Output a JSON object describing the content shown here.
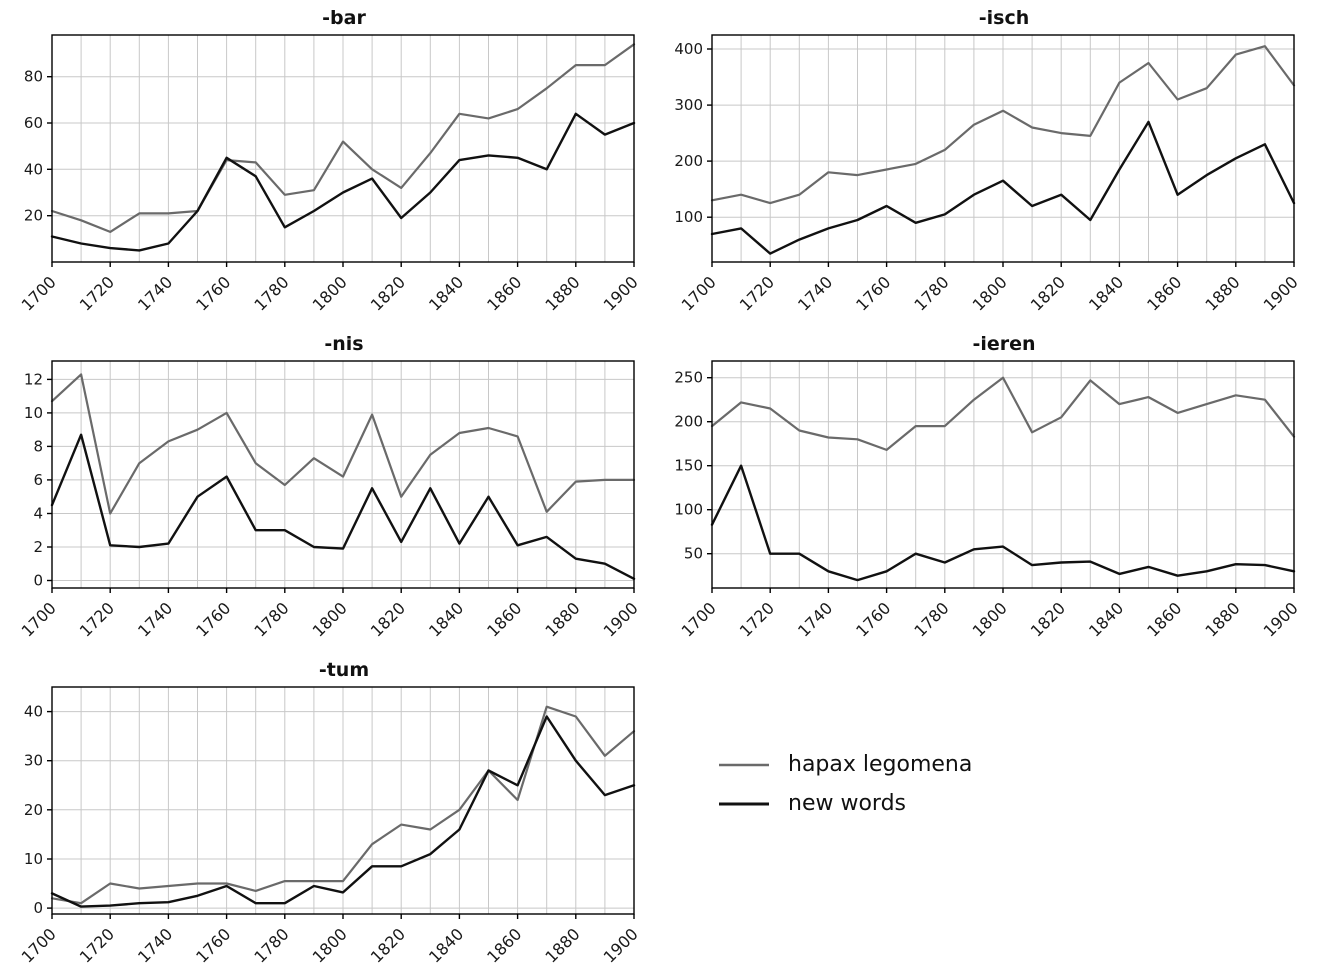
{
  "figure": {
    "background": "#ffffff",
    "grid_color": "#c8c8c8",
    "border_color": "#000000",
    "hapax_color": "#6a6a6a",
    "new_words_color": "#111111"
  },
  "legend": {
    "items": [
      {
        "label": "hapax legomena",
        "color": "#6a6a6a",
        "width": 2.5
      },
      {
        "label": "new words",
        "color": "#111111",
        "width": 3
      }
    ]
  },
  "chart_data": [
    {
      "type": "line",
      "title": "-bar",
      "xlabel": "",
      "ylabel": "",
      "x": [
        1700,
        1710,
        1720,
        1730,
        1740,
        1750,
        1760,
        1770,
        1780,
        1790,
        1800,
        1810,
        1820,
        1830,
        1840,
        1850,
        1860,
        1870,
        1880,
        1890,
        1900
      ],
      "xticks": [
        1700,
        1720,
        1740,
        1760,
        1780,
        1800,
        1820,
        1840,
        1860,
        1880,
        1900
      ],
      "yticks": [
        20,
        40,
        60,
        80
      ],
      "ylim": [
        0,
        98
      ],
      "grid": true,
      "series": [
        {
          "name": "hapax legomena",
          "color": "#6a6a6a",
          "width": 2.2,
          "values": [
            22,
            18,
            13,
            21,
            21,
            22,
            44,
            43,
            29,
            31,
            52,
            40,
            32,
            47,
            64,
            62,
            66,
            75,
            85,
            85,
            94
          ]
        },
        {
          "name": "new words",
          "color": "#111111",
          "width": 2.4,
          "values": [
            11,
            8,
            6,
            5,
            8,
            22,
            45,
            37,
            15,
            22,
            30,
            36,
            19,
            30,
            44,
            46,
            45,
            40,
            64,
            55,
            60
          ]
        }
      ]
    },
    {
      "type": "line",
      "title": "-isch",
      "xlabel": "",
      "ylabel": "",
      "x": [
        1700,
        1710,
        1720,
        1730,
        1740,
        1750,
        1760,
        1770,
        1780,
        1790,
        1800,
        1810,
        1820,
        1830,
        1840,
        1850,
        1860,
        1870,
        1880,
        1890,
        1900
      ],
      "xticks": [
        1700,
        1720,
        1740,
        1760,
        1780,
        1800,
        1820,
        1840,
        1860,
        1880,
        1900
      ],
      "yticks": [
        100,
        200,
        300,
        400
      ],
      "ylim": [
        20,
        425
      ],
      "grid": true,
      "series": [
        {
          "name": "hapax legomena",
          "color": "#6a6a6a",
          "width": 2.2,
          "values": [
            130,
            140,
            125,
            140,
            180,
            175,
            185,
            195,
            220,
            265,
            290,
            260,
            250,
            245,
            340,
            375,
            310,
            330,
            390,
            405,
            335
          ]
        },
        {
          "name": "new words",
          "color": "#111111",
          "width": 2.4,
          "values": [
            70,
            80,
            35,
            60,
            80,
            95,
            120,
            90,
            105,
            140,
            165,
            120,
            140,
            95,
            185,
            270,
            140,
            175,
            205,
            230,
            125
          ]
        }
      ]
    },
    {
      "type": "line",
      "title": "-nis",
      "xlabel": "",
      "ylabel": "",
      "x": [
        1700,
        1710,
        1720,
        1730,
        1740,
        1750,
        1760,
        1770,
        1780,
        1790,
        1800,
        1810,
        1820,
        1830,
        1840,
        1850,
        1860,
        1870,
        1880,
        1890,
        1900
      ],
      "xticks": [
        1700,
        1720,
        1740,
        1760,
        1780,
        1800,
        1820,
        1840,
        1860,
        1880,
        1900
      ],
      "yticks": [
        0,
        2,
        4,
        6,
        8,
        10,
        12
      ],
      "ylim": [
        -0.45,
        13.1
      ],
      "grid": true,
      "series": [
        {
          "name": "hapax legomena",
          "color": "#6a6a6a",
          "width": 2.2,
          "values": [
            10.7,
            12.3,
            4,
            7,
            8.3,
            9,
            10,
            7,
            5.7,
            7.3,
            6.2,
            9.9,
            5,
            7.5,
            8.8,
            9.1,
            8.6,
            4.1,
            5.9,
            6,
            6
          ]
        },
        {
          "name": "new words",
          "color": "#111111",
          "width": 2.4,
          "values": [
            4.5,
            8.7,
            2.1,
            2,
            2.2,
            5,
            6.2,
            3,
            3,
            2,
            1.9,
            5.5,
            2.3,
            5.5,
            2.2,
            5,
            2.1,
            2.6,
            1.3,
            1,
            0.1
          ]
        }
      ]
    },
    {
      "type": "line",
      "title": "-ieren",
      "xlabel": "",
      "ylabel": "",
      "x": [
        1700,
        1710,
        1720,
        1730,
        1740,
        1750,
        1760,
        1770,
        1780,
        1790,
        1800,
        1810,
        1820,
        1830,
        1840,
        1850,
        1860,
        1870,
        1880,
        1890,
        1900
      ],
      "xticks": [
        1700,
        1720,
        1740,
        1760,
        1780,
        1800,
        1820,
        1840,
        1860,
        1880,
        1900
      ],
      "yticks": [
        50,
        100,
        150,
        200,
        250
      ],
      "ylim": [
        11,
        269
      ],
      "grid": true,
      "series": [
        {
          "name": "hapax legomena",
          "color": "#6a6a6a",
          "width": 2.2,
          "values": [
            195,
            222,
            215,
            190,
            182,
            180,
            168,
            195,
            195,
            225,
            250,
            188,
            205,
            247,
            220,
            228,
            210,
            220,
            230,
            225,
            183
          ]
        },
        {
          "name": "new words",
          "color": "#111111",
          "width": 2.4,
          "values": [
            83,
            150,
            50,
            50,
            30,
            20,
            30,
            50,
            40,
            55,
            58,
            37,
            40,
            41,
            27,
            35,
            25,
            30,
            38,
            37,
            30
          ]
        }
      ]
    },
    {
      "type": "line",
      "title": "-tum",
      "xlabel": "",
      "ylabel": "",
      "x": [
        1700,
        1710,
        1720,
        1730,
        1740,
        1750,
        1760,
        1770,
        1780,
        1790,
        1800,
        1810,
        1820,
        1830,
        1840,
        1850,
        1860,
        1870,
        1880,
        1890,
        1900
      ],
      "xticks": [
        1700,
        1720,
        1740,
        1760,
        1780,
        1800,
        1820,
        1840,
        1860,
        1880,
        1900
      ],
      "yticks": [
        0,
        10,
        20,
        30,
        40
      ],
      "ylim": [
        -1.2,
        45
      ],
      "grid": true,
      "series": [
        {
          "name": "hapax legomena",
          "color": "#6a6a6a",
          "width": 2.2,
          "values": [
            2,
            1,
            5,
            4,
            4.5,
            5,
            5,
            3.5,
            5.5,
            5.5,
            5.5,
            13,
            17,
            16,
            20,
            28,
            22,
            41,
            39,
            31,
            36
          ]
        },
        {
          "name": "new words",
          "color": "#111111",
          "width": 2.4,
          "values": [
            3,
            0.3,
            0.5,
            1,
            1.2,
            2.5,
            4.5,
            1,
            1,
            4.5,
            3.2,
            8.5,
            8.5,
            11,
            16,
            28,
            25,
            39,
            30,
            23,
            25
          ]
        }
      ]
    }
  ]
}
